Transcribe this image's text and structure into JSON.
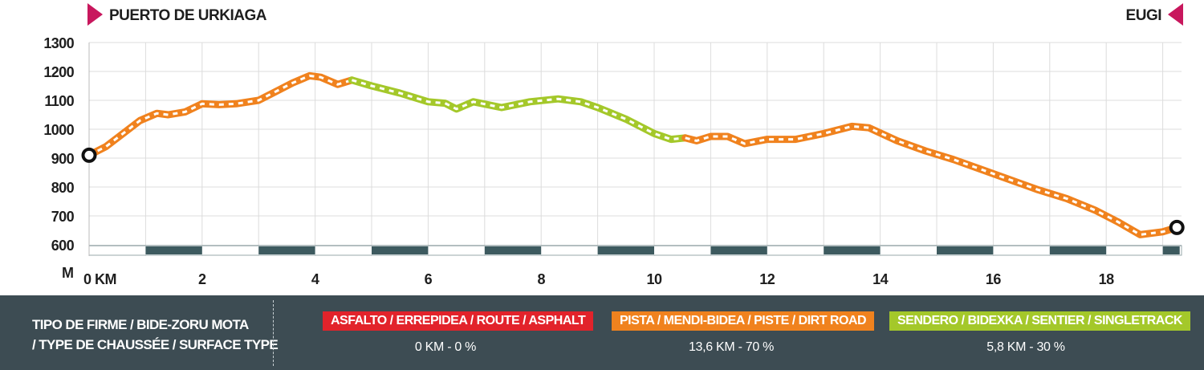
{
  "start_label": "PUERTO DE URKIAGA",
  "end_label": "EUGI",
  "colors": {
    "asphalt": "#e2232b",
    "dirt_road": "#f0821e",
    "singletrack": "#a4c82a",
    "marker": "#c8175d",
    "legend_bg": "#3d4c53",
    "surface_band": "#3d5a5f"
  },
  "chart_data": {
    "type": "line",
    "ylabel": "M",
    "xlabel": "KM",
    "ylim": [
      580,
      1300
    ],
    "xlim": [
      0,
      19.3
    ],
    "yticks": [
      600,
      700,
      800,
      900,
      1000,
      1100,
      1200,
      1300
    ],
    "xticks": [
      0,
      2,
      4,
      6,
      8,
      10,
      12,
      14,
      16,
      18
    ],
    "xtick_labels": [
      "0 KM",
      "2",
      "4",
      "6",
      "8",
      "10",
      "12",
      "14",
      "16",
      "18"
    ],
    "grid": true,
    "series": [
      {
        "x": [
          0,
          0.3,
          0.6,
          0.9,
          1.2,
          1.4,
          1.7,
          2.0,
          2.3,
          2.6,
          3.0,
          3.3,
          3.6,
          3.9,
          4.1,
          4.4,
          4.65
        ],
        "y": [
          910,
          940,
          985,
          1030,
          1055,
          1050,
          1060,
          1088,
          1085,
          1088,
          1100,
          1130,
          1160,
          1185,
          1180,
          1155,
          1170
        ]
      },
      {
        "x": [
          4.65,
          5.0,
          5.5,
          6.0,
          6.3,
          6.5,
          6.8,
          7.3,
          7.8,
          8.3,
          8.7,
          9.0,
          9.5,
          10.0,
          10.3,
          10.55
        ],
        "y": [
          1170,
          1150,
          1125,
          1095,
          1090,
          1070,
          1095,
          1075,
          1095,
          1105,
          1095,
          1075,
          1035,
          985,
          965,
          970
        ]
      },
      {
        "x": [
          10.55,
          10.75,
          11.0,
          11.3,
          11.6,
          12.0,
          12.5,
          13.0,
          13.5,
          13.8,
          14.3,
          14.8,
          15.3,
          15.8,
          16.3,
          16.8,
          17.3,
          17.8,
          18.2,
          18.6,
          19.0,
          19.25
        ],
        "y": [
          970,
          960,
          975,
          975,
          950,
          965,
          965,
          985,
          1010,
          1005,
          960,
          925,
          895,
          860,
          825,
          790,
          760,
          720,
          680,
          635,
          645,
          660
        ]
      }
    ],
    "surface_band_segments": [
      {
        "x0": 1,
        "x1": 2,
        "dark": true
      },
      {
        "x0": 3,
        "x1": 4,
        "dark": true
      },
      {
        "x0": 5,
        "x1": 6,
        "dark": true
      },
      {
        "x0": 7,
        "x1": 8,
        "dark": true
      },
      {
        "x0": 9,
        "x1": 10,
        "dark": true
      },
      {
        "x0": 11,
        "x1": 12,
        "dark": true
      },
      {
        "x0": 13,
        "x1": 14,
        "dark": true
      },
      {
        "x0": 15,
        "x1": 16,
        "dark": true
      },
      {
        "x0": 17,
        "x1": 18,
        "dark": true
      },
      {
        "x0": 19,
        "x1": 19.3,
        "dark": true
      }
    ]
  },
  "legend": {
    "title_line1": "TIPO DE FIRME / BIDE-ZORU MOTA",
    "title_line2": "/ TYPE DE CHAUSSÉE / SURFACE TYPE",
    "items": [
      {
        "label": "ASFALTO / ERREPIDEA / ROUTE / ASPHALT",
        "stat": "0 KM - 0 %"
      },
      {
        "label": "PISTA / MENDI-BIDEA / PISTE / DIRT ROAD",
        "stat": "13,6 KM - 70 %"
      },
      {
        "label": "SENDERO  / BIDEXKA / SENTIER / SINGLETRACK",
        "stat": "5,8 KM - 30 %"
      }
    ]
  }
}
